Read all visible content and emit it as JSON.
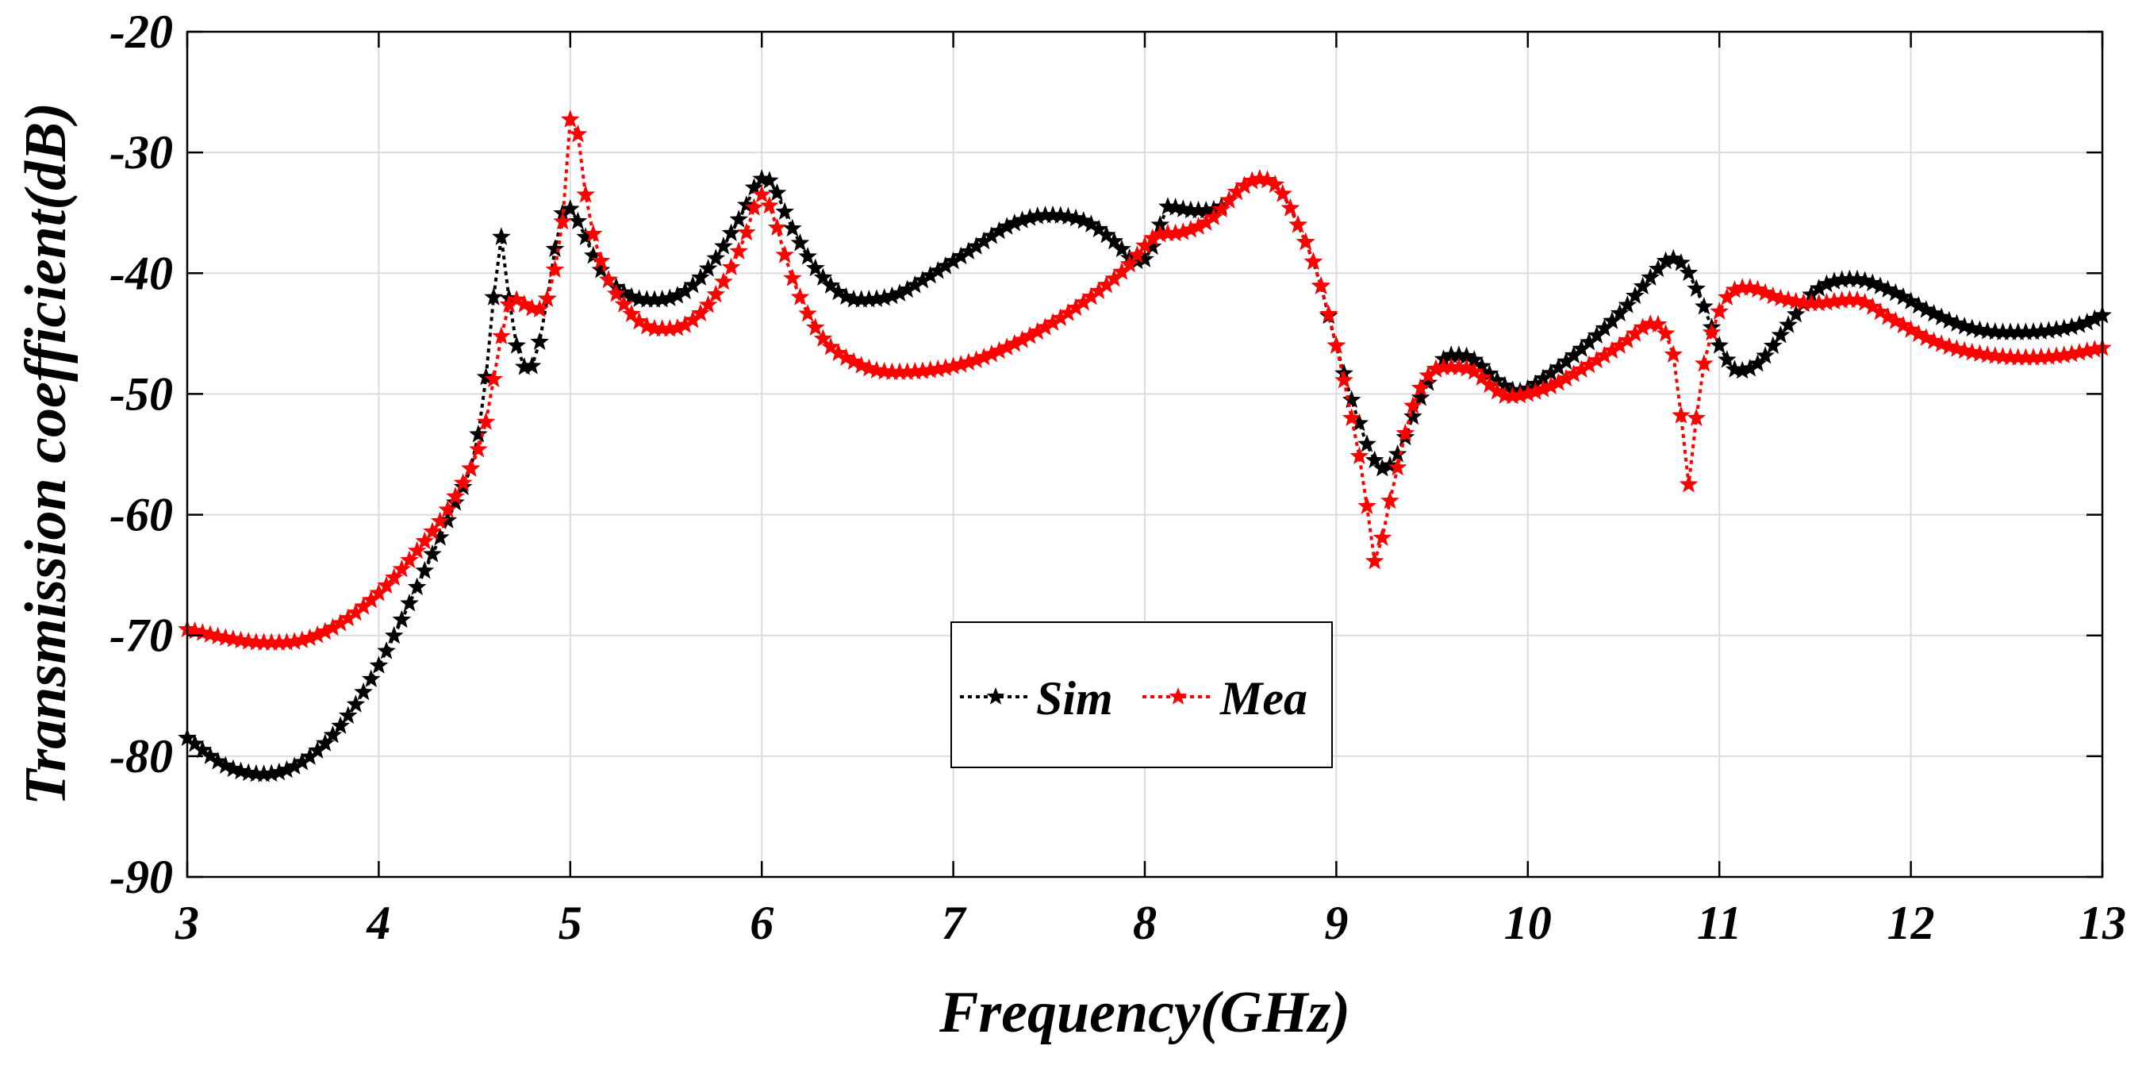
{
  "chart_data": {
    "type": "line",
    "title": "",
    "xlabel": "Frequency(GHz)",
    "ylabel": "Transmission coefficient(dB)",
    "xlim": [
      3,
      13
    ],
    "ylim": [
      -90,
      -20
    ],
    "xticks": [
      3,
      4,
      5,
      6,
      7,
      8,
      9,
      10,
      11,
      12,
      13
    ],
    "yticks": [
      -90,
      -80,
      -70,
      -60,
      -50,
      -40,
      -30,
      -20
    ],
    "grid": true,
    "legend_position": "center-bottom",
    "series": [
      {
        "name": "Sim",
        "color": "#000000",
        "marker": "star",
        "line_style": "dotted",
        "points": [
          [
            3.0,
            -78.5
          ],
          [
            3.2,
            -80.8
          ],
          [
            3.4,
            -81.5
          ],
          [
            3.6,
            -80.5
          ],
          [
            3.8,
            -77.5
          ],
          [
            4.0,
            -72.5
          ],
          [
            4.2,
            -66
          ],
          [
            4.4,
            -59
          ],
          [
            4.5,
            -55
          ],
          [
            4.55,
            -50
          ],
          [
            4.6,
            -42
          ],
          [
            4.63,
            -36.5
          ],
          [
            4.67,
            -41
          ],
          [
            4.72,
            -46
          ],
          [
            4.78,
            -48
          ],
          [
            4.85,
            -45
          ],
          [
            4.92,
            -38
          ],
          [
            4.98,
            -34.5
          ],
          [
            5.05,
            -36
          ],
          [
            5.15,
            -39.5
          ],
          [
            5.3,
            -41.8
          ],
          [
            5.45,
            -42.2
          ],
          [
            5.6,
            -41.5
          ],
          [
            5.75,
            -39
          ],
          [
            5.9,
            -35
          ],
          [
            6.0,
            -32.2
          ],
          [
            6.05,
            -32.5
          ],
          [
            6.15,
            -36
          ],
          [
            6.3,
            -40
          ],
          [
            6.5,
            -42.2
          ],
          [
            6.7,
            -41.8
          ],
          [
            6.9,
            -40
          ],
          [
            7.1,
            -38
          ],
          [
            7.3,
            -36
          ],
          [
            7.5,
            -35.2
          ],
          [
            7.7,
            -35.8
          ],
          [
            7.85,
            -37.5
          ],
          [
            7.95,
            -39
          ],
          [
            8.02,
            -38.5
          ],
          [
            8.08,
            -36
          ],
          [
            8.12,
            -34.5
          ],
          [
            8.25,
            -34.8
          ],
          [
            8.4,
            -34.5
          ],
          [
            8.5,
            -33
          ],
          [
            8.6,
            -32.2
          ],
          [
            8.7,
            -33
          ],
          [
            8.8,
            -36
          ],
          [
            8.9,
            -40
          ],
          [
            9.0,
            -46
          ],
          [
            9.1,
            -51.5
          ],
          [
            9.2,
            -55.5
          ],
          [
            9.25,
            -56.2
          ],
          [
            9.32,
            -55
          ],
          [
            9.45,
            -50
          ],
          [
            9.6,
            -46.8
          ],
          [
            9.7,
            -47
          ],
          [
            9.85,
            -49
          ],
          [
            9.95,
            -49.8
          ],
          [
            10.1,
            -48.5
          ],
          [
            10.3,
            -46
          ],
          [
            10.5,
            -43
          ],
          [
            10.65,
            -40.2
          ],
          [
            10.75,
            -38.8
          ],
          [
            10.82,
            -39.5
          ],
          [
            10.9,
            -42
          ],
          [
            11.0,
            -46
          ],
          [
            11.1,
            -48.1
          ],
          [
            11.2,
            -47.5
          ],
          [
            11.35,
            -44.5
          ],
          [
            11.5,
            -41.5
          ],
          [
            11.7,
            -40.5
          ],
          [
            11.9,
            -41.5
          ],
          [
            12.1,
            -43.2
          ],
          [
            12.3,
            -44.5
          ],
          [
            12.5,
            -44.9
          ],
          [
            12.7,
            -44.8
          ],
          [
            12.9,
            -44.2
          ],
          [
            13.0,
            -43.5
          ]
        ]
      },
      {
        "name": "Mea",
        "color": "#ff0000",
        "marker": "star",
        "line_style": "dotted",
        "points": [
          [
            3.0,
            -69.5
          ],
          [
            3.2,
            -70.2
          ],
          [
            3.4,
            -70.6
          ],
          [
            3.6,
            -70.4
          ],
          [
            3.8,
            -69
          ],
          [
            4.0,
            -66.5
          ],
          [
            4.2,
            -63
          ],
          [
            4.4,
            -58.5
          ],
          [
            4.55,
            -53
          ],
          [
            4.62,
            -47
          ],
          [
            4.67,
            -43
          ],
          [
            4.72,
            -42.2
          ],
          [
            4.78,
            -42.8
          ],
          [
            4.85,
            -43
          ],
          [
            4.9,
            -41
          ],
          [
            4.95,
            -37
          ],
          [
            4.98,
            -32.5
          ],
          [
            5.01,
            -26
          ],
          [
            5.04,
            -28.5
          ],
          [
            5.08,
            -33.5
          ],
          [
            5.15,
            -38.5
          ],
          [
            5.3,
            -43
          ],
          [
            5.45,
            -44.6
          ],
          [
            5.6,
            -44.3
          ],
          [
            5.75,
            -42
          ],
          [
            5.9,
            -37.5
          ],
          [
            6.0,
            -33.5
          ],
          [
            6.05,
            -34.8
          ],
          [
            6.15,
            -40
          ],
          [
            6.3,
            -45
          ],
          [
            6.5,
            -47.5
          ],
          [
            6.7,
            -48.2
          ],
          [
            6.9,
            -48
          ],
          [
            7.1,
            -47.3
          ],
          [
            7.3,
            -46
          ],
          [
            7.5,
            -44.3
          ],
          [
            7.7,
            -42.2
          ],
          [
            7.9,
            -39.6
          ],
          [
            8.05,
            -37
          ],
          [
            8.2,
            -36.6
          ],
          [
            8.35,
            -35.5
          ],
          [
            8.5,
            -33
          ],
          [
            8.6,
            -32.2
          ],
          [
            8.7,
            -33
          ],
          [
            8.8,
            -36
          ],
          [
            8.9,
            -40
          ],
          [
            9.0,
            -46
          ],
          [
            9.08,
            -52
          ],
          [
            9.15,
            -58
          ],
          [
            9.18,
            -62
          ],
          [
            9.21,
            -64.2
          ],
          [
            9.25,
            -61
          ],
          [
            9.3,
            -57.5
          ],
          [
            9.4,
            -51
          ],
          [
            9.55,
            -47.8
          ],
          [
            9.7,
            -48
          ],
          [
            9.9,
            -50.2
          ],
          [
            10.1,
            -49.5
          ],
          [
            10.3,
            -47.8
          ],
          [
            10.5,
            -45.8
          ],
          [
            10.65,
            -44.2
          ],
          [
            10.72,
            -45
          ],
          [
            10.78,
            -48.5
          ],
          [
            10.81,
            -53.5
          ],
          [
            10.84,
            -57.5
          ],
          [
            10.88,
            -52
          ],
          [
            10.92,
            -47.5
          ],
          [
            10.98,
            -44
          ],
          [
            11.05,
            -41.8
          ],
          [
            11.15,
            -41.2
          ],
          [
            11.3,
            -42
          ],
          [
            11.5,
            -42.5
          ],
          [
            11.7,
            -42.2
          ],
          [
            11.9,
            -43.8
          ],
          [
            12.1,
            -45.5
          ],
          [
            12.3,
            -46.5
          ],
          [
            12.6,
            -47
          ],
          [
            12.8,
            -46.8
          ],
          [
            13.0,
            -46.2
          ]
        ]
      }
    ]
  }
}
